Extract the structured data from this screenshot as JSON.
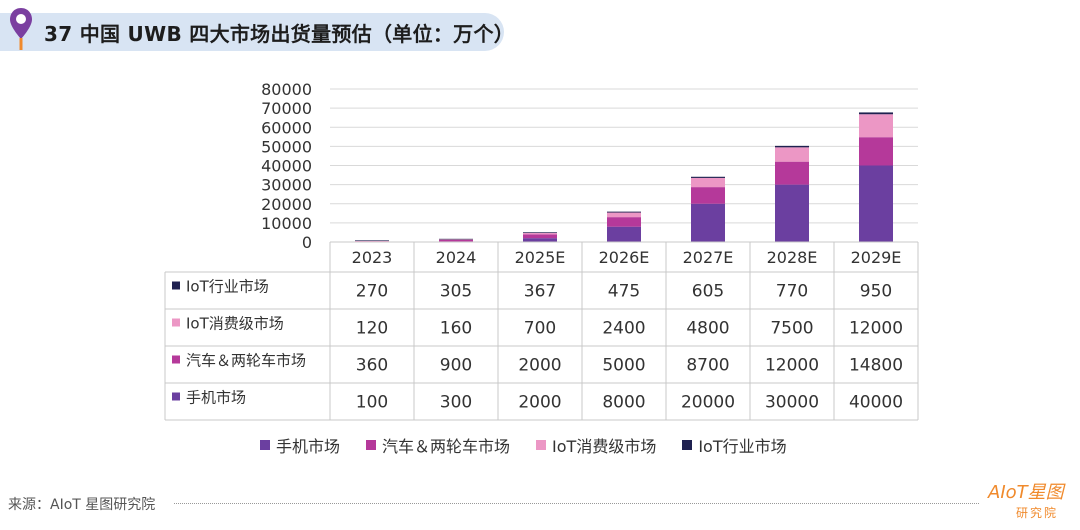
{
  "header": {
    "title": "37 中国 UWB 四大市场出货量预估（单位：万个）",
    "icon": "map-pin-icon"
  },
  "colors": {
    "pin": "#7b3fa0",
    "phone": "#6b3fa0",
    "auto": "#b5399a",
    "iot_consumer": "#ec97c5",
    "iot_industry": "#1f2150",
    "grid": "#d9d9d9",
    "table_border": "#c8c8c8",
    "logo": "#f08a2c"
  },
  "chart_data": {
    "type": "bar",
    "stacked": true,
    "categories": [
      "2023",
      "2024",
      "2025E",
      "2026E",
      "2027E",
      "2028E",
      "2029E"
    ],
    "series": [
      {
        "name": "手机市场",
        "values": [
          100,
          300,
          2000,
          8000,
          20000,
          30000,
          40000
        ]
      },
      {
        "name": "汽车＆两轮车市场",
        "values": [
          360,
          900,
          2000,
          5000,
          8700,
          12000,
          14800
        ]
      },
      {
        "name": "IoT消费级市场",
        "values": [
          120,
          160,
          700,
          2400,
          4800,
          7500,
          12000
        ]
      },
      {
        "name": "IoT行业市场",
        "values": [
          270,
          305,
          367,
          475,
          605,
          770,
          950
        ]
      }
    ],
    "ylim": [
      0,
      80000
    ],
    "yticks": [
      "80000",
      "70000",
      "60000",
      "50000",
      "40000",
      "30000",
      "20000",
      "10000",
      "0"
    ],
    "grid": true,
    "data_table": true,
    "legend_position": "bottom"
  },
  "footer": {
    "source": "来源：AIoT 星图研究院",
    "logo_top": "AIoT星图",
    "logo_bottom": "研究院"
  }
}
